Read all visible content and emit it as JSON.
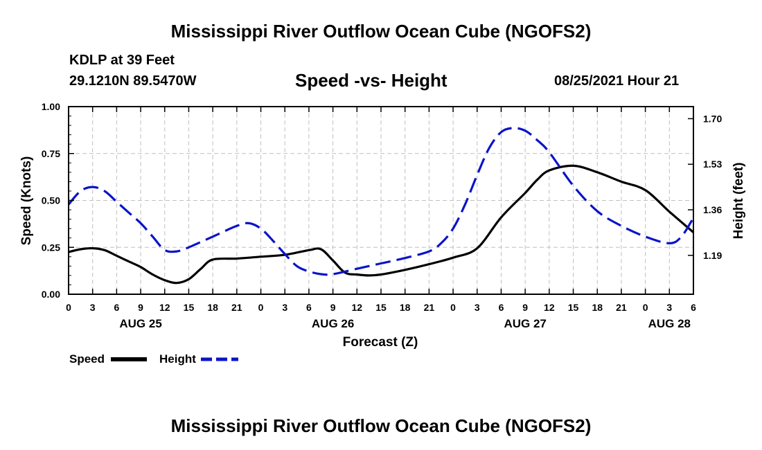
{
  "header": {
    "title": "Mississippi River Outflow Ocean Cube (NGOFS2)",
    "station": "KDLP at 39 Feet",
    "coords": "29.1210N  89.5470W",
    "subtitle": "Speed -vs- Height",
    "datetime": "08/25/2021 Hour 21"
  },
  "footer": {
    "title": "Mississippi River Outflow Ocean Cube (NGOFS2)"
  },
  "legend": {
    "speed_label": "Speed",
    "height_label": "Height"
  },
  "colors": {
    "speed": "#000000",
    "height": "#0a14c8",
    "grid": "#bfbfbf"
  },
  "chart_data": {
    "type": "line",
    "title": "Speed -vs- Height",
    "xlabel": "Forecast (Z)",
    "ylabel": "Speed (Knots)",
    "y2label": "Height (feet)",
    "x_hours_range": [
      0,
      78
    ],
    "ylim": [
      0,
      1.0
    ],
    "y2lim": [
      1.045,
      1.745
    ],
    "yticks": [
      0.0,
      0.25,
      0.5,
      0.75,
      1.0
    ],
    "ytick_labels": [
      "0.00",
      "0.25",
      "0.50",
      "0.75",
      "1.00"
    ],
    "y2ticks": [
      1.19,
      1.36,
      1.53,
      1.7
    ],
    "y2tick_labels": [
      "1.19",
      "1.36",
      "1.53",
      "1.70"
    ],
    "xtick_hours": [
      0,
      3,
      6,
      9,
      12,
      15,
      18,
      21,
      24,
      27,
      30,
      33,
      36,
      39,
      42,
      45,
      48,
      51,
      54,
      57,
      60,
      63,
      66,
      69,
      72,
      75,
      78
    ],
    "xtick_labels": [
      "0",
      "3",
      "6",
      "9",
      "12",
      "15",
      "18",
      "21",
      "0",
      "3",
      "6",
      "9",
      "12",
      "15",
      "18",
      "21",
      "0",
      "3",
      "6",
      "9",
      "12",
      "15",
      "18",
      "21",
      "0",
      "3",
      "6"
    ],
    "day_labels": [
      {
        "hour": 9,
        "label": "AUG 25"
      },
      {
        "hour": 33,
        "label": "AUG 26"
      },
      {
        "hour": 57,
        "label": "AUG 27"
      },
      {
        "hour": 75,
        "label": "AUG 28"
      }
    ],
    "series": [
      {
        "name": "Speed",
        "axis": "left",
        "style": "solid",
        "x": [
          0,
          1.5,
          3,
          4.5,
          6,
          7.5,
          9,
          10.5,
          12,
          13.5,
          15,
          16.5,
          18,
          21,
          24,
          27,
          30,
          31.5,
          33,
          34.5,
          36,
          37.5,
          39,
          42,
          45,
          48,
          51,
          54,
          57,
          58.5,
          60,
          63,
          66,
          69,
          72,
          75,
          78
        ],
        "y": [
          0.225,
          0.24,
          0.245,
          0.235,
          0.205,
          0.175,
          0.145,
          0.105,
          0.075,
          0.06,
          0.08,
          0.135,
          0.185,
          0.19,
          0.2,
          0.21,
          0.235,
          0.24,
          0.18,
          0.115,
          0.105,
          0.1,
          0.105,
          0.13,
          0.16,
          0.195,
          0.245,
          0.41,
          0.54,
          0.61,
          0.66,
          0.685,
          0.65,
          0.6,
          0.555,
          0.44,
          0.33
        ]
      },
      {
        "name": "Height",
        "axis": "right",
        "style": "dashed",
        "x": [
          0,
          1.5,
          3,
          4.5,
          6,
          7.5,
          9,
          10.5,
          12,
          13.5,
          15,
          18,
          21,
          22.5,
          24,
          25.5,
          27,
          28.5,
          30,
          31.5,
          33,
          36,
          39,
          42,
          45,
          46.5,
          48,
          49.5,
          51,
          52.5,
          54,
          55.5,
          57,
          58.5,
          60,
          63,
          66,
          69,
          72,
          75,
          76.5,
          78
        ],
        "y": [
          1.38,
          1.43,
          1.445,
          1.43,
          1.39,
          1.35,
          1.31,
          1.26,
          1.21,
          1.205,
          1.22,
          1.26,
          1.3,
          1.31,
          1.29,
          1.245,
          1.195,
          1.15,
          1.13,
          1.12,
          1.12,
          1.14,
          1.16,
          1.18,
          1.205,
          1.235,
          1.29,
          1.38,
          1.49,
          1.59,
          1.65,
          1.665,
          1.655,
          1.62,
          1.575,
          1.45,
          1.355,
          1.3,
          1.26,
          1.235,
          1.26,
          1.33
        ]
      }
    ]
  }
}
